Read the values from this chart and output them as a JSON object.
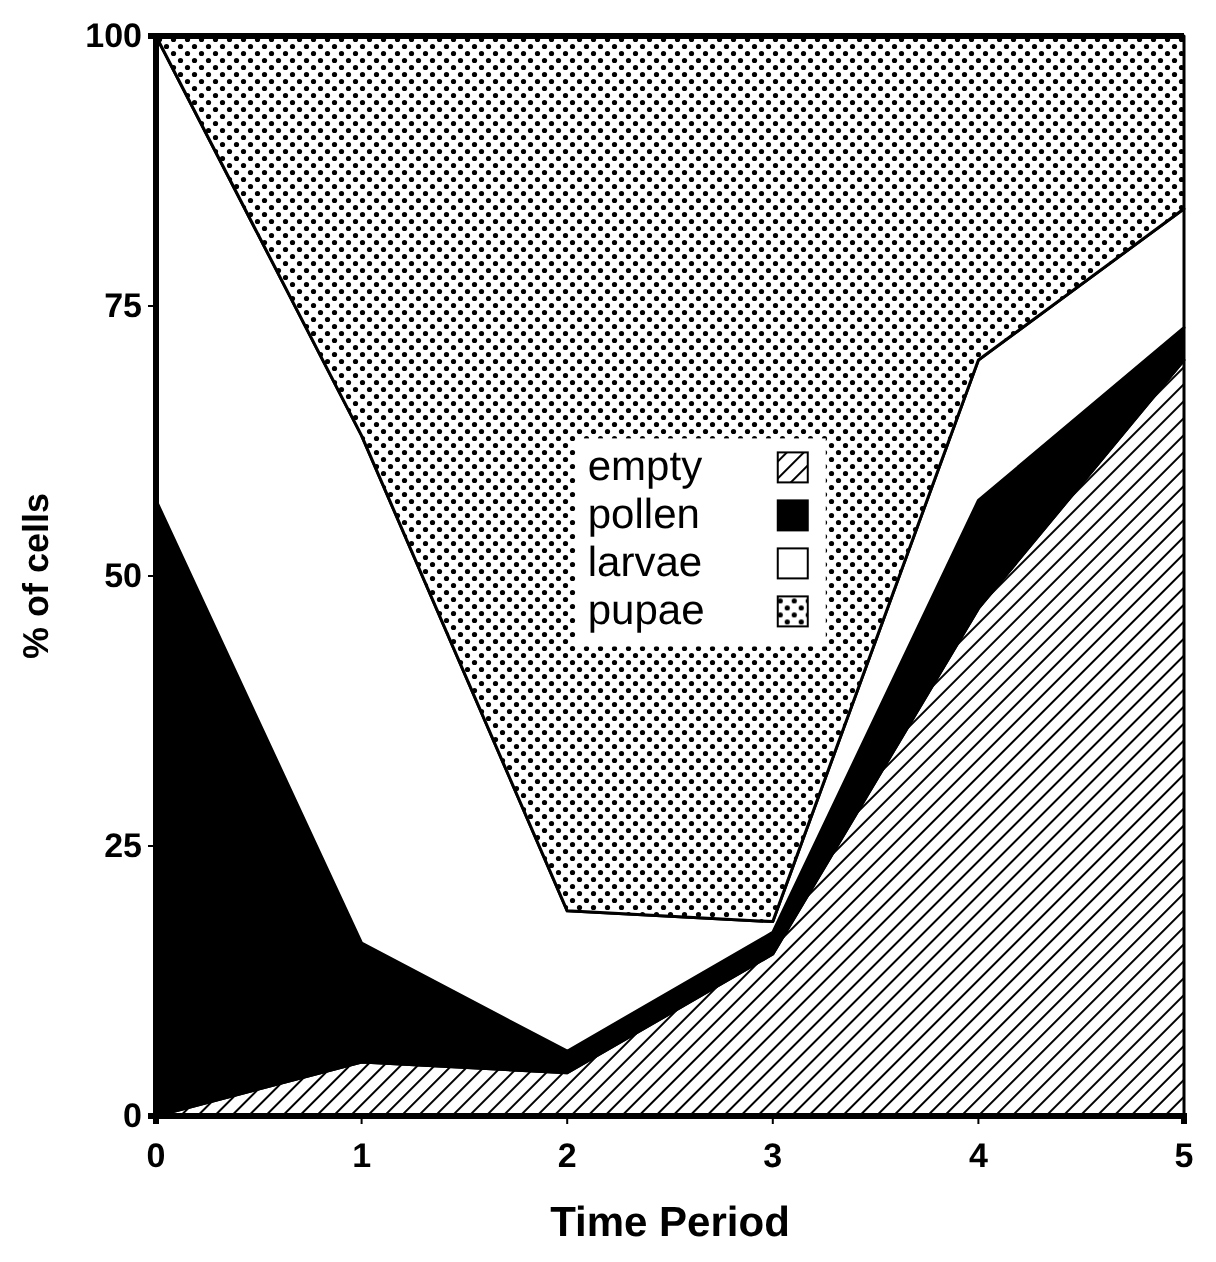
{
  "chart_data": {
    "type": "area",
    "stacked": true,
    "xlabel": "Time Period",
    "ylabel": "% of cells",
    "x": [
      0,
      1,
      2,
      3,
      4,
      5
    ],
    "xlim": [
      0,
      5
    ],
    "xticks": [
      0,
      1,
      2,
      3,
      4,
      5
    ],
    "ylim": [
      0,
      100
    ],
    "yticks": [
      0,
      25,
      50,
      75,
      100
    ],
    "legend": "center",
    "series": [
      {
        "name": "empty",
        "color": "#000000",
        "values": [
          0,
          5,
          4,
          15,
          47,
          70
        ]
      },
      {
        "name": "pollen",
        "color": "#000000",
        "values": [
          57,
          11,
          2,
          2,
          10,
          3
        ]
      },
      {
        "name": "larvae",
        "color": "#ffffff",
        "values": [
          43,
          47,
          13,
          1,
          13,
          11
        ]
      },
      {
        "name": "pupae",
        "color": "#000000",
        "values": [
          0,
          37,
          81,
          82,
          30,
          16
        ]
      }
    ]
  }
}
